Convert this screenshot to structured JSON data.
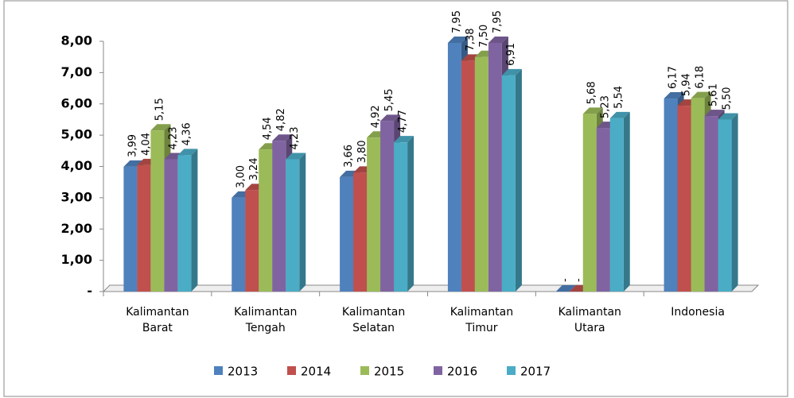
{
  "chart_data": {
    "type": "bar3d",
    "categories": [
      "Kalimantan Barat",
      "Kalimantan Tengah",
      "Kalimantan Selatan",
      "Kalimantan Timur",
      "Kalimantan Utara",
      "Indonesia"
    ],
    "series": [
      {
        "name": "2013",
        "color": "#4f81bd",
        "values": [
          3.99,
          3.0,
          3.66,
          7.95,
          0,
          6.17
        ],
        "value_labels": [
          "3,99",
          "3,00",
          "3,66",
          "7,95",
          "-",
          "6,17"
        ]
      },
      {
        "name": "2014",
        "color": "#c0504d",
        "values": [
          4.04,
          3.24,
          3.8,
          7.38,
          0,
          5.94
        ],
        "value_labels": [
          "4,04",
          "3,24",
          "3,80",
          "7,38",
          "-",
          "5,94"
        ]
      },
      {
        "name": "2015",
        "color": "#9bbb59",
        "values": [
          5.15,
          4.54,
          4.92,
          7.5,
          5.68,
          6.18
        ],
        "value_labels": [
          "5,15",
          "4,54",
          "4,92",
          "7,50",
          "5,68",
          "6,18"
        ]
      },
      {
        "name": "2016",
        "color": "#8064a2",
        "values": [
          4.23,
          4.82,
          5.45,
          7.95,
          5.23,
          5.61
        ],
        "value_labels": [
          "4,23",
          "4,82",
          "5,45",
          "7,95",
          "5,23",
          "5,61"
        ]
      },
      {
        "name": "2017",
        "color": "#4bacc6",
        "values": [
          4.36,
          4.23,
          4.77,
          6.91,
          5.54,
          5.5
        ],
        "value_labels": [
          "4,36",
          "4,23",
          "4,77",
          "6,91",
          "5,54",
          "5,50"
        ]
      }
    ],
    "ylim": [
      0,
      8
    ],
    "yticks": [
      {
        "value": 0,
        "label": "-"
      },
      {
        "value": 1,
        "label": "1,00"
      },
      {
        "value": 2,
        "label": "2,00"
      },
      {
        "value": 3,
        "label": "3,00"
      },
      {
        "value": 4,
        "label": "4,00"
      },
      {
        "value": 5,
        "label": "5,00"
      },
      {
        "value": 6,
        "label": "6,00"
      },
      {
        "value": 7,
        "label": "7,00"
      },
      {
        "value": 8,
        "label": "8,00"
      }
    ],
    "grid": false,
    "legend": "bottom"
  }
}
